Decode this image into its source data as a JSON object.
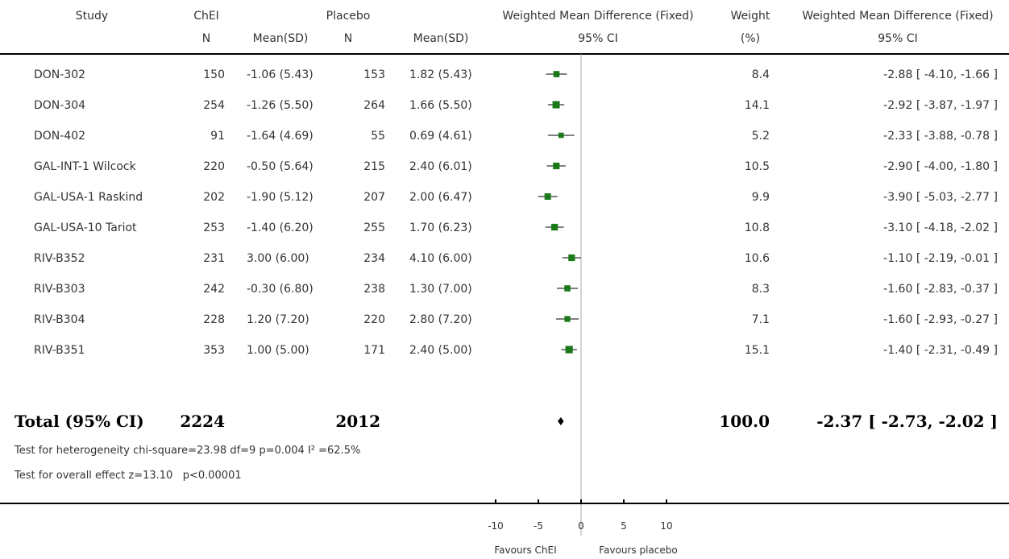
{
  "headers": {
    "study": "Study",
    "chei": "ChEI",
    "placebo": "Placebo",
    "wmd_plot": "Weighted Mean Difference (Fixed)",
    "weight": "Weight",
    "wmd_text": "Weighted Mean Difference (Fixed)",
    "n1": "N",
    "mean1": "Mean(SD)",
    "n2": "N",
    "mean2": "Mean(SD)",
    "ci_plot": "95% CI",
    "weight_pct": "(%)",
    "ci_text": "95% CI"
  },
  "studies": [
    {
      "name": "DON-302",
      "n1": "150",
      "mean1": "-1.06 (5.43)",
      "n2": "153",
      "mean2": "1.82 (5.43)",
      "weight": "8.4",
      "ci": "-2.88 [ -4.10, -1.66 ]"
    },
    {
      "name": "DON-304",
      "n1": "254",
      "mean1": "-1.26 (5.50)",
      "n2": "264",
      "mean2": "1.66 (5.50)",
      "weight": "14.1",
      "ci": "-2.92 [ -3.87, -1.97 ]"
    },
    {
      "name": "DON-402",
      "n1": "91",
      "mean1": "-1.64 (4.69)",
      "n2": "55",
      "mean2": "0.69 (4.61)",
      "weight": "5.2",
      "ci": "-2.33 [ -3.88, -0.78 ]"
    },
    {
      "name": "GAL-INT-1 Wilcock",
      "n1": "220",
      "mean1": "-0.50 (5.64)",
      "n2": "215",
      "mean2": "2.40 (6.01)",
      "weight": "10.5",
      "ci": "-2.90 [ -4.00, -1.80 ]"
    },
    {
      "name": "GAL-USA-1 Raskind",
      "n1": "202",
      "mean1": "-1.90 (5.12)",
      "n2": "207",
      "mean2": "2.00 (6.47)",
      "weight": "9.9",
      "ci": "-3.90 [ -5.03, -2.77 ]"
    },
    {
      "name": "GAL-USA-10 Tariot",
      "n1": "253",
      "mean1": "-1.40 (6.20)",
      "n2": "255",
      "mean2": "1.70 (6.23)",
      "weight": "10.8",
      "ci": "-3.10 [ -4.18, -2.02 ]"
    },
    {
      "name": "RIV-B352",
      "n1": "231",
      "mean1": "3.00 (6.00)",
      "n2": "234",
      "mean2": "4.10 (6.00)",
      "weight": "10.6",
      "ci": "-1.10 [ -2.19, -0.01 ]"
    },
    {
      "name": "RIV-B303",
      "n1": "242",
      "mean1": "-0.30 (6.80)",
      "n2": "238",
      "mean2": "1.30 (7.00)",
      "weight": "8.3",
      "ci": "-1.60 [ -2.83, -0.37 ]"
    },
    {
      "name": "RIV-B304",
      "n1": "228",
      "mean1": "1.20 (7.20)",
      "n2": "220",
      "mean2": "2.80 (7.20)",
      "weight": "7.1",
      "ci": "-1.60 [ -2.93, -0.27 ]"
    },
    {
      "name": "RIV-B351",
      "n1": "353",
      "mean1": "1.00 (5.00)",
      "n2": "171",
      "mean2": "2.40 (5.00)",
      "weight": "15.1",
      "ci": "-1.40 [ -2.31, -0.49 ]"
    }
  ],
  "total": {
    "label": "Total (95% CI)",
    "n1": "2224",
    "n2": "2012",
    "weight": "100.0",
    "ci": "-2.37 [ -2.73, -2.02 ]"
  },
  "footnotes": {
    "heterogeneity": "Test for heterogeneity chi-square=23.98 df=9 p=0.004 I² =62.5%",
    "overall": "Test for overall effect z=13.10   p<0.00001"
  },
  "axis": {
    "ticks": [
      "-10",
      "-5",
      "0",
      "5",
      "10"
    ],
    "favours_left": "Favours ChEI",
    "favours_right": "Favours placebo"
  },
  "colors": {
    "marker": "#1a7a1a",
    "line": "#000000",
    "zero_line": "#aaaaaa",
    "text": "#333333"
  },
  "chart_data": {
    "type": "forest",
    "xlim": [
      -10,
      10
    ],
    "x_ticks": [
      -10,
      -5,
      0,
      5,
      10
    ],
    "studies": [
      {
        "name": "DON-302",
        "estimate": -2.88,
        "lower": -4.1,
        "upper": -1.66,
        "weight": 8.4
      },
      {
        "name": "DON-304",
        "estimate": -2.92,
        "lower": -3.87,
        "upper": -1.97,
        "weight": 14.1
      },
      {
        "name": "DON-402",
        "estimate": -2.33,
        "lower": -3.88,
        "upper": -0.78,
        "weight": 5.2
      },
      {
        "name": "GAL-INT-1 Wilcock",
        "estimate": -2.9,
        "lower": -4.0,
        "upper": -1.8,
        "weight": 10.5
      },
      {
        "name": "GAL-USA-1 Raskind",
        "estimate": -3.9,
        "lower": -5.03,
        "upper": -2.77,
        "weight": 9.9
      },
      {
        "name": "GAL-USA-10 Tariot",
        "estimate": -3.1,
        "lower": -4.18,
        "upper": -2.02,
        "weight": 10.8
      },
      {
        "name": "RIV-B352",
        "estimate": -1.1,
        "lower": -2.19,
        "upper": -0.01,
        "weight": 10.6
      },
      {
        "name": "RIV-B303",
        "estimate": -1.6,
        "lower": -2.83,
        "upper": -0.37,
        "weight": 8.3
      },
      {
        "name": "RIV-B304",
        "estimate": -1.6,
        "lower": -2.93,
        "upper": -0.27,
        "weight": 7.1
      },
      {
        "name": "RIV-B351",
        "estimate": -1.4,
        "lower": -2.31,
        "upper": -0.49,
        "weight": 15.1
      }
    ],
    "pooled": {
      "estimate": -2.37,
      "lower": -2.73,
      "upper": -2.02,
      "weight": 100.0
    }
  }
}
